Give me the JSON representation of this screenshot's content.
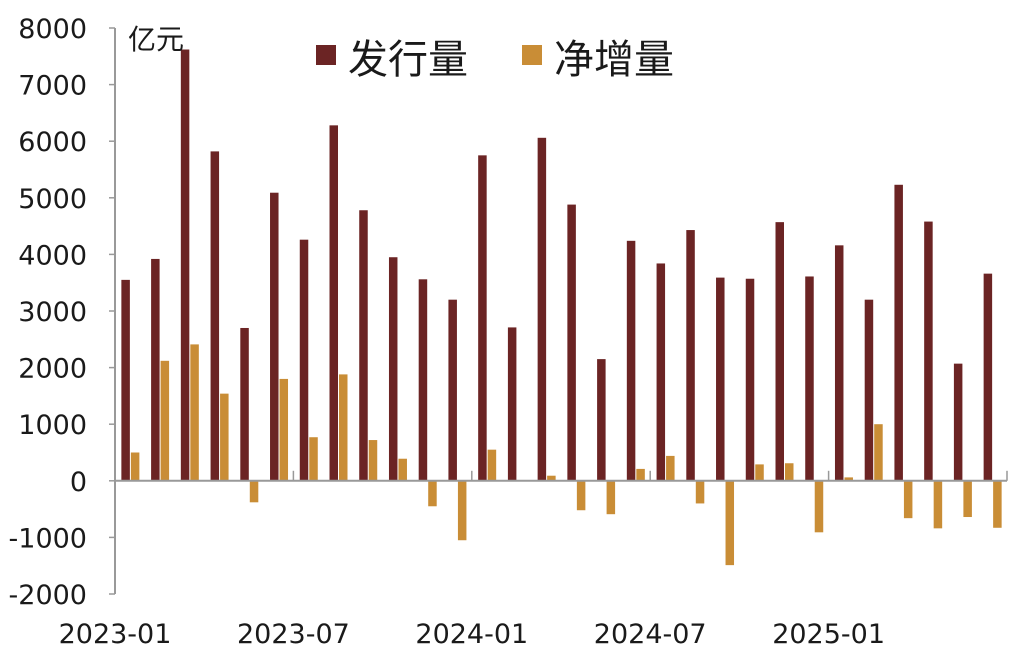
{
  "chart_data": {
    "type": "bar",
    "unit_label": "亿元",
    "categories": [
      "2023-01",
      "2023-02",
      "2023-03",
      "2023-04",
      "2023-05",
      "2023-06",
      "2023-07",
      "2023-08",
      "2023-09",
      "2023-10",
      "2023-11",
      "2023-12",
      "2024-01",
      "2024-02",
      "2024-03",
      "2024-04",
      "2024-05",
      "2024-06",
      "2024-07",
      "2024-08",
      "2024-09",
      "2024-10",
      "2024-11",
      "2024-12",
      "2025-01",
      "2025-02",
      "2025-03",
      "2025-04",
      "2025-05",
      "2025-06"
    ],
    "x_tick_labels": [
      "2023-01",
      "2023-07",
      "2024-01",
      "2024-07",
      "2025-01"
    ],
    "series": [
      {
        "name": "发行量",
        "color": "#6b2424",
        "values": [
          3550,
          3920,
          7620,
          5820,
          2700,
          5090,
          4260,
          6280,
          4780,
          3950,
          3560,
          3200,
          5750,
          2710,
          6060,
          4880,
          2150,
          4240,
          3840,
          4430,
          3590,
          3570,
          4570,
          3610,
          4160,
          3200,
          5230,
          4580,
          2070,
          3660
        ]
      },
      {
        "name": "净增量",
        "color": "#c98d36",
        "values": [
          500,
          2120,
          2410,
          1540,
          -380,
          1800,
          770,
          1880,
          720,
          390,
          -450,
          -1050,
          550,
          0,
          90,
          -520,
          -590,
          210,
          440,
          -400,
          -1490,
          290,
          310,
          -910,
          60,
          1000,
          -660,
          -840,
          -640,
          -830
        ]
      }
    ],
    "ylim": [
      -2000,
      8000
    ],
    "y_ticks": [
      -2000,
      -1000,
      0,
      1000,
      2000,
      3000,
      4000,
      5000,
      6000,
      7000,
      8000
    ],
    "legend_position": "top-center",
    "grid": false
  }
}
